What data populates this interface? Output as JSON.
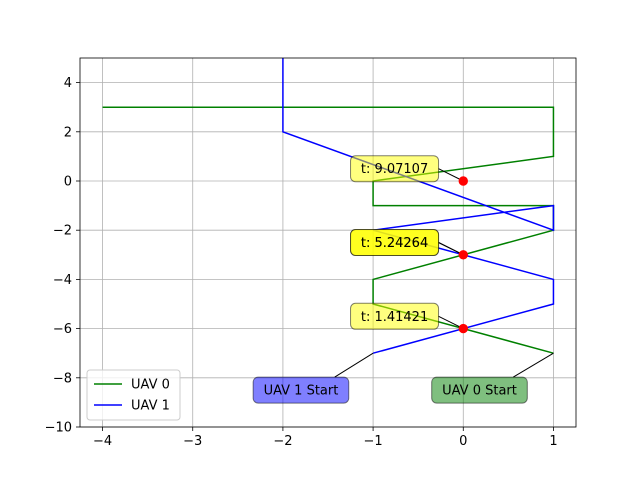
{
  "chart_data": {
    "type": "line",
    "title": "",
    "xlabel": "",
    "ylabel": "",
    "xlim": [
      -4.25,
      1.25
    ],
    "ylim": [
      -10,
      5
    ],
    "xticks": [
      -4,
      -3,
      -2,
      -1,
      0,
      1
    ],
    "yticks": [
      -10,
      -8,
      -6,
      -4,
      -2,
      0,
      2,
      4
    ],
    "xtick_labels": [
      "−4",
      "−3",
      "−2",
      "−1",
      "0",
      "1"
    ],
    "ytick_labels": [
      "−10",
      "−8",
      "−6",
      "−4",
      "−2",
      "0",
      "2",
      "4"
    ],
    "grid": true,
    "legend_position": "lower-left",
    "series": [
      {
        "name": "UAV 0",
        "color": "#008000",
        "x": [
          1,
          -1,
          -1,
          1,
          1,
          -1,
          -1,
          1,
          1,
          -4
        ],
        "y": [
          -7,
          -5,
          -4,
          -2,
          -1,
          -1,
          0,
          1,
          3,
          3
        ]
      },
      {
        "name": "UAV 1",
        "color": "#0000ff",
        "x": [
          -1,
          1,
          1,
          -1,
          1,
          1,
          -2,
          -2
        ],
        "y": [
          -7,
          -5,
          -4,
          -2,
          -1,
          -2,
          2,
          5
        ]
      }
    ],
    "collision_points": {
      "color": "#ff0000",
      "x": [
        0,
        0,
        0
      ],
      "y": [
        0,
        -3,
        -6
      ]
    },
    "annotations": [
      {
        "text": "t: 9.07107",
        "x": 0,
        "y": 0,
        "tx": -1.25,
        "ty": 0.5,
        "bg": "#ffff00",
        "opacity": 0.5
      },
      {
        "text": "t: 5.24264",
        "x": 0,
        "y": -3,
        "tx": -1.25,
        "ty": -2.5,
        "bg": "#ffff00",
        "opacity": 0.75
      },
      {
        "text": "t: 5.24264",
        "x": 0,
        "y": -3,
        "tx": -1.25,
        "ty": -2.5,
        "bg": "#ffff00",
        "opacity": 0.5
      },
      {
        "text": "t: 1.41421",
        "x": 0,
        "y": -6,
        "tx": -1.25,
        "ty": -5.5,
        "bg": "#ffff00",
        "opacity": 0.5
      },
      {
        "text": "UAV 1 Start",
        "x": -1,
        "y": -7,
        "tx": -1.8,
        "ty": -8.5,
        "bg": "#0000ff",
        "opacity": 0.5
      },
      {
        "text": "UAV 0 Start",
        "x": 1,
        "y": -7,
        "tx": 0.18,
        "ty": -8.5,
        "bg": "#008000",
        "opacity": 0.5
      }
    ]
  }
}
